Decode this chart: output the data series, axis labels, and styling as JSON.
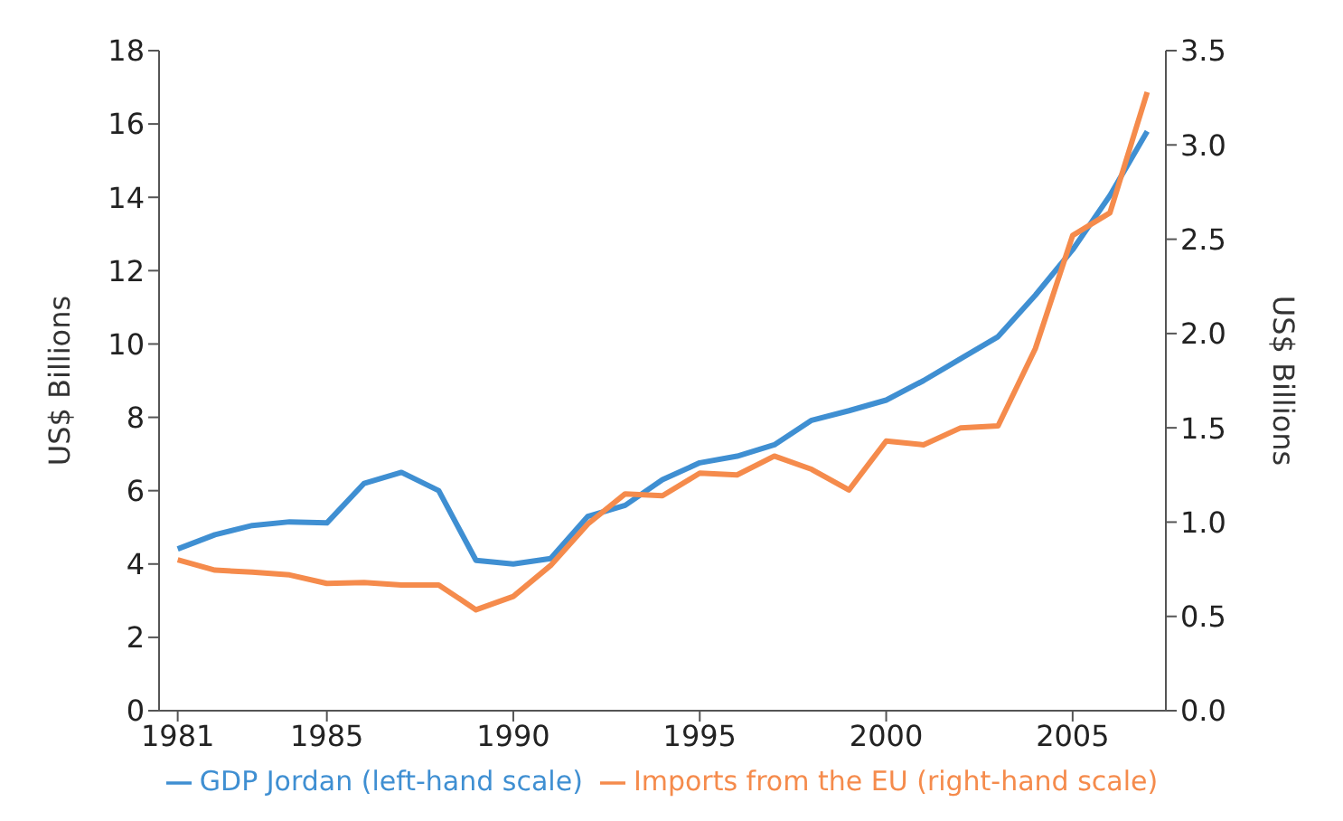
{
  "chart_data": {
    "type": "line",
    "ylabel": "US$ Billions",
    "y2label": "US$ Billions",
    "x": [
      1981,
      1982,
      1983,
      1984,
      1985,
      1986,
      1987,
      1988,
      1989,
      1990,
      1991,
      1992,
      1993,
      1994,
      1995,
      1996,
      1997,
      1998,
      1999,
      2000,
      2001,
      2002,
      2003,
      2004,
      2005,
      2006,
      2007
    ],
    "xlim": [
      1980.5,
      2007.5
    ],
    "xticks": [
      1981,
      1985,
      1990,
      1995,
      2000,
      2005
    ],
    "ylim": [
      0,
      18
    ],
    "yticks": [
      0,
      2,
      4,
      6,
      8,
      10,
      12,
      14,
      16,
      18
    ],
    "y2lim": [
      0,
      3.5
    ],
    "y2ticks": [
      {
        "value": 0,
        "label": "0.0"
      },
      {
        "value": 0.5,
        "label": "0.5"
      },
      {
        "value": 1,
        "label": "1.0"
      },
      {
        "value": 1.5,
        "label": "1.5"
      },
      {
        "value": 2,
        "label": "2.0"
      },
      {
        "value": 2.5,
        "label": "2.5"
      },
      {
        "value": 3,
        "label": "3.0"
      },
      {
        "value": 3.5,
        "label": "3.5"
      }
    ],
    "series": [
      {
        "name": "GDP Jordan (left-hand scale)",
        "color": "#3f8fd2",
        "values": [
          4.41,
          4.8,
          5.05,
          5.15,
          5.12,
          6.2,
          6.5,
          6.0,
          4.1,
          4.0,
          4.15,
          5.3,
          5.6,
          6.3,
          6.76,
          6.94,
          7.25,
          7.92,
          8.18,
          8.47,
          9.0,
          9.6,
          10.2,
          11.33,
          12.57,
          14.05,
          15.8
        ]
      },
      {
        "name": "Imports from the EU (right-hand scale)",
        "color": "#f58b4c",
        "axis": "y2",
        "values": [
          0.8,
          0.745,
          0.735,
          0.72,
          0.675,
          0.68,
          0.667,
          0.667,
          0.535,
          0.606,
          0.77,
          0.99,
          1.15,
          1.14,
          1.26,
          1.25,
          1.35,
          1.28,
          1.17,
          1.43,
          1.41,
          1.5,
          1.51,
          1.92,
          2.52,
          2.64,
          3.28
        ]
      }
    ],
    "grid": false,
    "legend": "bottom",
    "marker": "none",
    "line_style": "solid"
  }
}
